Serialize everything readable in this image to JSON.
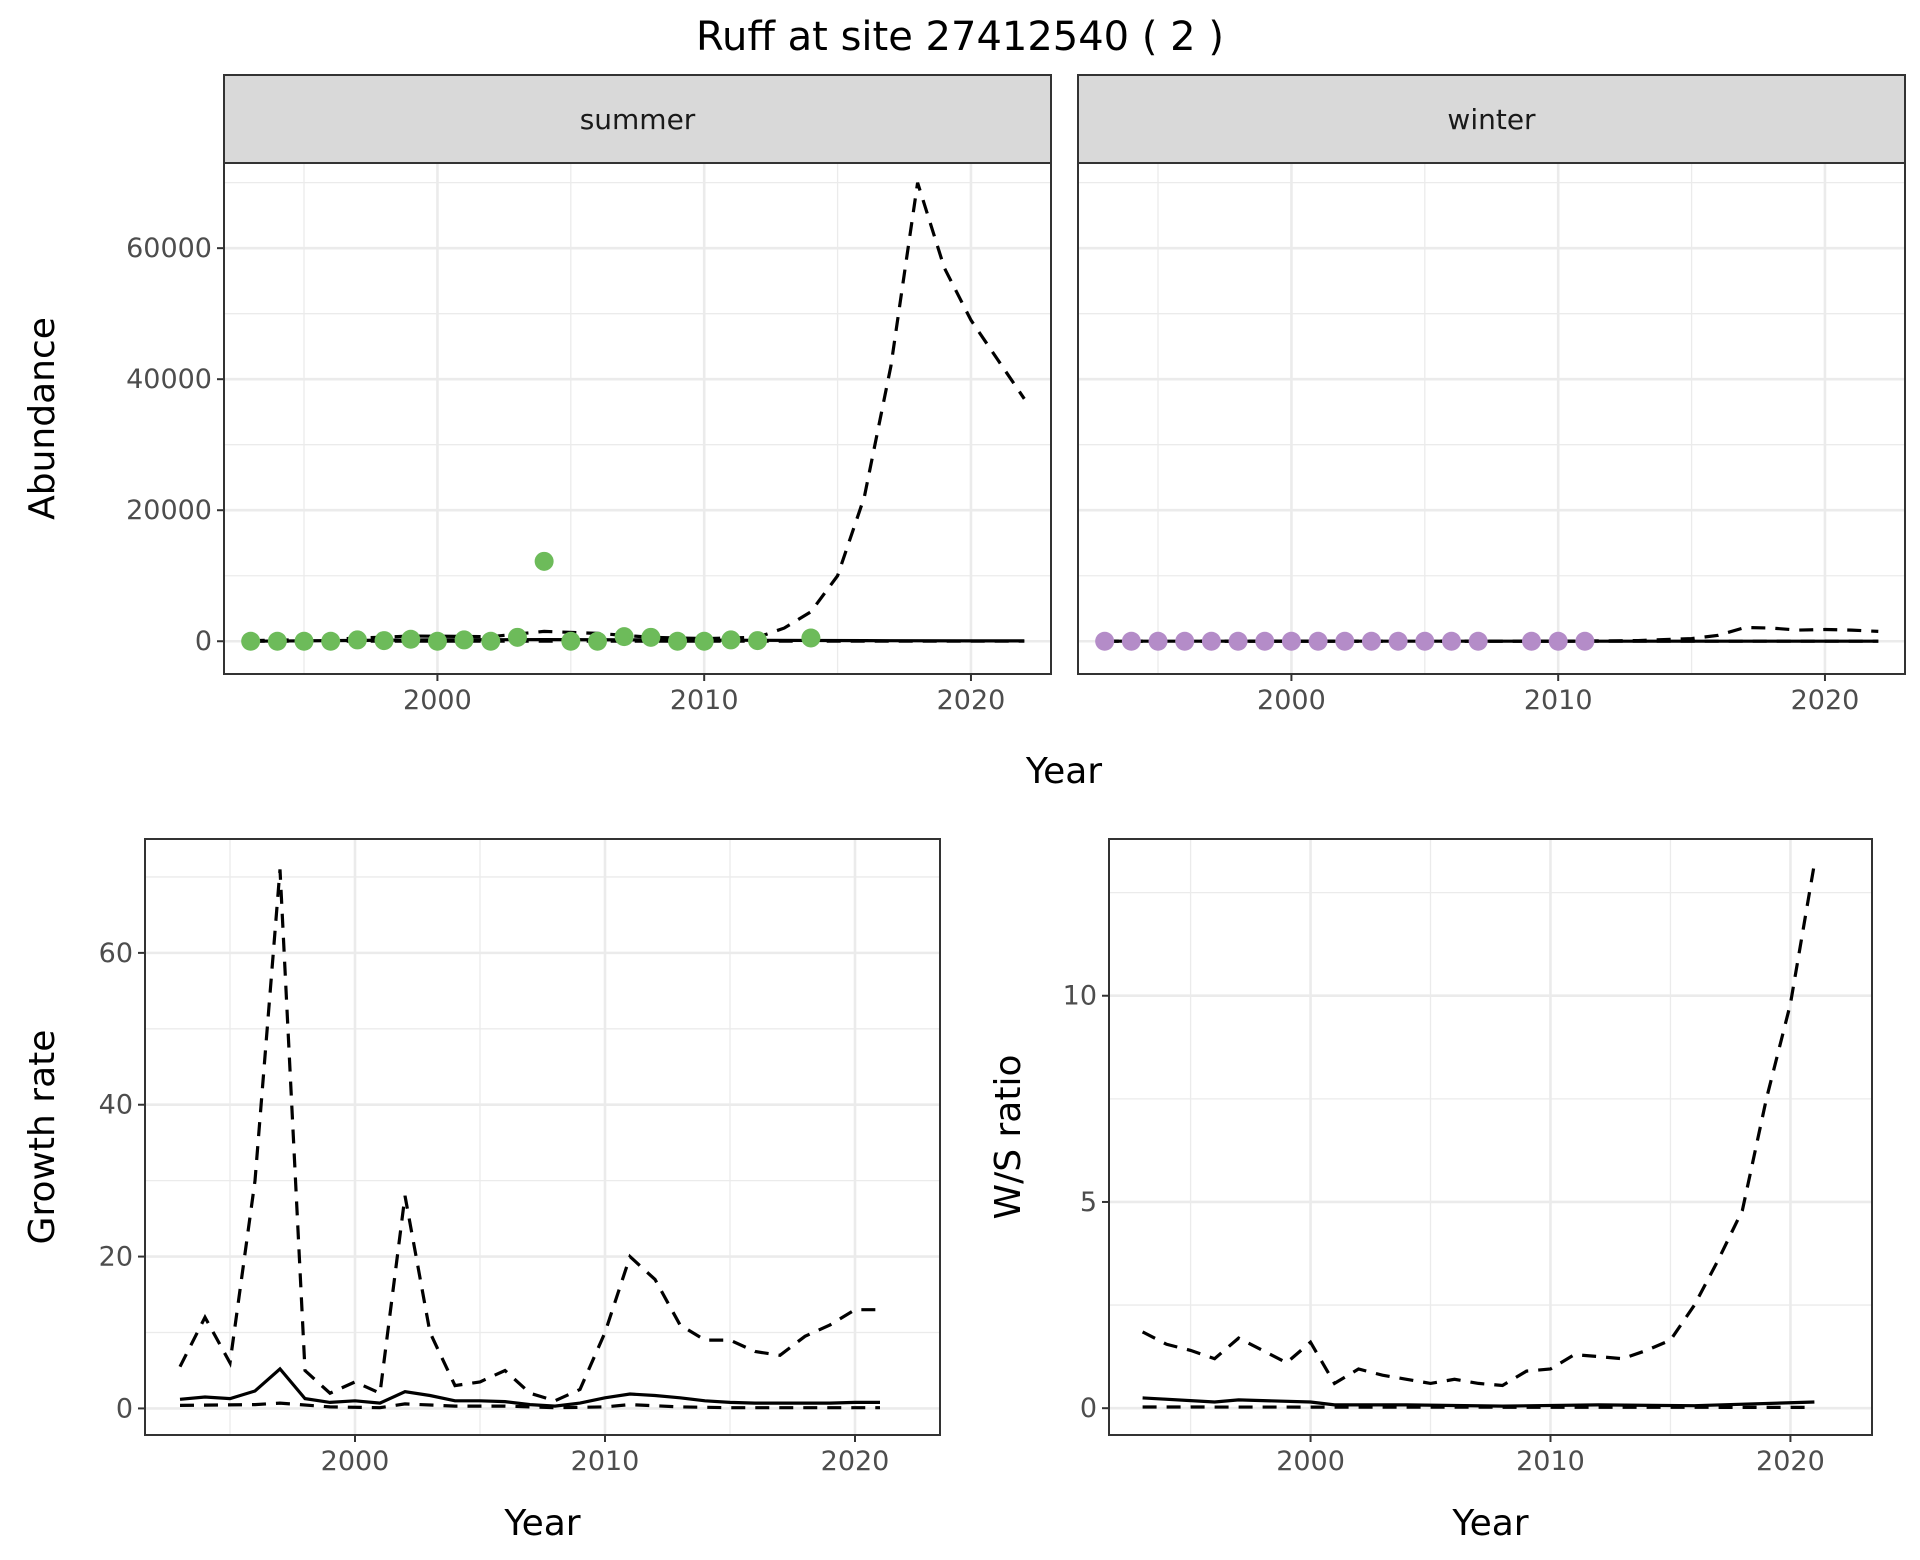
{
  "title": "Ruff at site 27412540 ( 2 )",
  "colors": {
    "summer_points": "#6dbb5a",
    "winter_points": "#b48cc8",
    "strip_fill": "#d9d9d9",
    "line": "#000000",
    "grid": "#ebebeb"
  },
  "chart_data": [
    {
      "type": "line",
      "name": "abundance",
      "ylabel": "Abundance",
      "xlabel": "Year",
      "xlim": [
        1992,
        2023
      ],
      "ylim": [
        -5000,
        73000
      ],
      "xticks": [
        2000,
        2010,
        2020
      ],
      "yticks": [
        0,
        20000,
        40000,
        60000
      ],
      "xtick_labels": [
        "2000",
        "2010",
        "2020"
      ],
      "ytick_labels": [
        "0",
        "20000",
        "40000",
        "60000"
      ],
      "facets": [
        {
          "label": "summer",
          "points": {
            "x": [
              1993,
              1994,
              1995,
              1996,
              1997,
              1998,
              1999,
              2000,
              2001,
              2002,
              2003,
              2004,
              2005,
              2006,
              2007,
              2008,
              2009,
              2010,
              2011,
              2012,
              2014
            ],
            "y": [
              0,
              0,
              0,
              0,
              200,
              100,
              300,
              0,
              200,
              0,
              600,
              12200,
              0,
              0,
              700,
              600,
              0,
              0,
              200,
              100,
              500
            ]
          },
          "series": [
            {
              "name": "estimate",
              "style": "solid",
              "x": [
                1993,
                1996,
                2000,
                2004,
                2008,
                2012,
                2016,
                2020,
                2022
              ],
              "y": [
                0,
                100,
                200,
                250,
                200,
                150,
                100,
                50,
                50
              ]
            },
            {
              "name": "upper",
              "style": "dashed",
              "x": [
                1993,
                1996,
                1999,
                2002,
                2004,
                2006,
                2008,
                2010,
                2012,
                2013,
                2014,
                2015,
                2016,
                2017,
                2018,
                2019,
                2020,
                2021,
                2022
              ],
              "y": [
                100,
                300,
                800,
                700,
                1500,
                1200,
                600,
                400,
                600,
                2000,
                4500,
                10000,
                22000,
                42000,
                70000,
                57000,
                49000,
                43000,
                37000
              ]
            },
            {
              "name": "lower",
              "style": "dashed",
              "x": [
                1993,
                2022
              ],
              "y": [
                0,
                0
              ]
            }
          ]
        },
        {
          "label": "winter",
          "points": {
            "x": [
              1993,
              1994,
              1995,
              1996,
              1997,
              1998,
              1999,
              2000,
              2001,
              2002,
              2003,
              2004,
              2005,
              2006,
              2007,
              2009,
              2010,
              2011
            ],
            "y": [
              0,
              0,
              0,
              0,
              0,
              0,
              0,
              0,
              0,
              0,
              0,
              0,
              0,
              0,
              0,
              0,
              0,
              0
            ]
          },
          "series": [
            {
              "name": "estimate",
              "style": "solid",
              "x": [
                1993,
                2022
              ],
              "y": [
                0,
                0
              ]
            },
            {
              "name": "upper",
              "style": "dashed",
              "x": [
                1993,
                2010,
                2013,
                2015,
                2016,
                2017,
                2018,
                2019,
                2020,
                2021,
                2022
              ],
              "y": [
                0,
                0,
                100,
                400,
                900,
                2100,
                2000,
                1700,
                1800,
                1700,
                1500
              ]
            },
            {
              "name": "lower",
              "style": "dashed",
              "x": [
                1993,
                2022
              ],
              "y": [
                0,
                0
              ]
            }
          ]
        }
      ]
    },
    {
      "type": "line",
      "name": "growth-rate",
      "ylabel": "Growth rate",
      "xlabel": "Year",
      "xlim": [
        1991.6,
        2023.4
      ],
      "ylim": [
        -3.5,
        75
      ],
      "xticks": [
        2000,
        2010,
        2020
      ],
      "yticks": [
        0,
        20,
        40,
        60
      ],
      "xtick_labels": [
        "2000",
        "2010",
        "2020"
      ],
      "ytick_labels": [
        "0",
        "20",
        "40",
        "60"
      ],
      "series": [
        {
          "name": "upper",
          "style": "dashed",
          "x": [
            1993,
            1994,
            1995,
            1996,
            1997,
            1998,
            1999,
            2000,
            2001,
            2002,
            2003,
            2004,
            2005,
            2006,
            2007,
            2008,
            2009,
            2010,
            2011,
            2012,
            2013,
            2014,
            2015,
            2016,
            2017,
            2018,
            2019,
            2020,
            2021
          ],
          "y": [
            5.5,
            12,
            6,
            30,
            71,
            5,
            2,
            3.5,
            2,
            28,
            10,
            3,
            3.5,
            5,
            2,
            1,
            2.5,
            10,
            20,
            17,
            11,
            9,
            9,
            7.5,
            7,
            9.5,
            11,
            13,
            13
          ]
        },
        {
          "name": "estimate",
          "style": "solid",
          "x": [
            1993,
            1994,
            1995,
            1996,
            1997,
            1998,
            1999,
            2000,
            2001,
            2002,
            2003,
            2004,
            2005,
            2006,
            2007,
            2008,
            2009,
            2010,
            2011,
            2012,
            2013,
            2014,
            2015,
            2016,
            2017,
            2018,
            2019,
            2020,
            2021
          ],
          "y": [
            1.2,
            1.5,
            1.3,
            2.3,
            5.2,
            1.3,
            0.8,
            1.0,
            0.7,
            2.2,
            1.7,
            1.0,
            1.0,
            0.9,
            0.5,
            0.3,
            0.7,
            1.4,
            1.9,
            1.7,
            1.4,
            1.0,
            0.8,
            0.7,
            0.7,
            0.7,
            0.7,
            0.8,
            0.8
          ]
        },
        {
          "name": "lower",
          "style": "dashed",
          "x": [
            1993,
            1996,
            1997,
            1999,
            2001,
            2002,
            2004,
            2006,
            2008,
            2010,
            2011,
            2013,
            2015,
            2021
          ],
          "y": [
            0.4,
            0.5,
            0.7,
            0.2,
            0.1,
            0.6,
            0.3,
            0.3,
            0.1,
            0.2,
            0.5,
            0.2,
            0.1,
            0.1
          ]
        }
      ]
    },
    {
      "type": "line",
      "name": "ws-ratio",
      "ylabel": "W/S ratio",
      "xlabel": "Year",
      "xlim": [
        1991.6,
        2023.4
      ],
      "ylim": [
        -0.65,
        13.8
      ],
      "xticks": [
        2000,
        2010,
        2020
      ],
      "yticks": [
        0,
        5,
        10
      ],
      "xtick_labels": [
        "2000",
        "2010",
        "2020"
      ],
      "ytick_labels": [
        "0",
        "5",
        "10"
      ],
      "series": [
        {
          "name": "upper",
          "style": "dashed",
          "x": [
            1993,
            1994,
            1995,
            1996,
            1997,
            1998,
            1999,
            2000,
            2001,
            2002,
            2003,
            2004,
            2005,
            2006,
            2007,
            2008,
            2009,
            2010,
            2011,
            2012,
            2013,
            2014,
            2015,
            2016,
            2017,
            2018,
            2019,
            2020,
            2021
          ],
          "y": [
            1.85,
            1.55,
            1.4,
            1.2,
            1.7,
            1.4,
            1.1,
            1.6,
            0.6,
            0.95,
            0.8,
            0.7,
            0.6,
            0.7,
            0.6,
            0.55,
            0.9,
            0.95,
            1.3,
            1.25,
            1.2,
            1.4,
            1.65,
            2.5,
            3.6,
            4.8,
            7.5,
            9.8,
            13.2
          ]
        },
        {
          "name": "estimate",
          "style": "solid",
          "x": [
            1993,
            1996,
            1997,
            2000,
            2001,
            2004,
            2008,
            2012,
            2016,
            2021
          ],
          "y": [
            0.25,
            0.15,
            0.2,
            0.15,
            0.08,
            0.08,
            0.05,
            0.08,
            0.06,
            0.15
          ]
        },
        {
          "name": "lower",
          "style": "dashed",
          "x": [
            1993,
            2021
          ],
          "y": [
            0.03,
            0.02
          ]
        }
      ]
    }
  ]
}
